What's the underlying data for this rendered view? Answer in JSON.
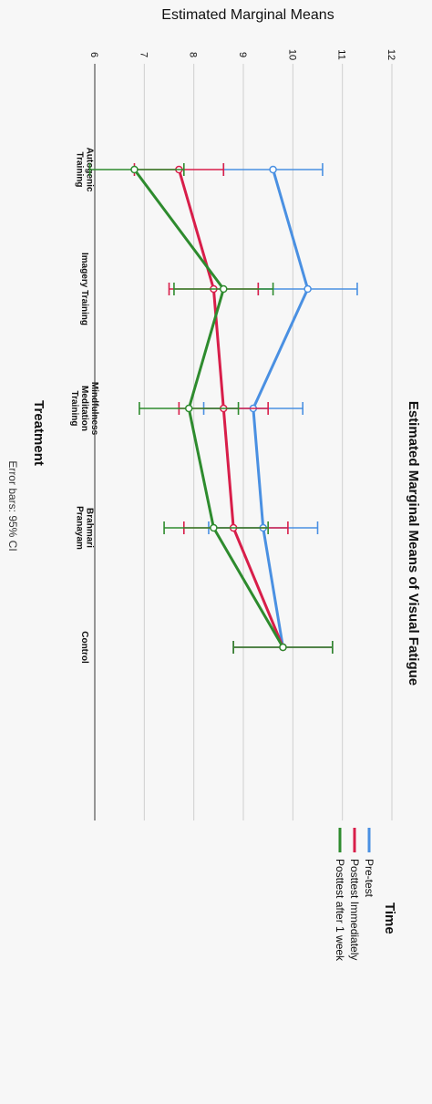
{
  "chart_data": {
    "type": "line",
    "title": "Estimated Marginal Means of Visual Fatigue",
    "ylabel": "Estimated Marginal Means",
    "xlabel": "Treatment",
    "note": "Error bars: 95% CI",
    "ylim": [
      6,
      12
    ],
    "yticks": [
      "6",
      "7",
      "8",
      "9",
      "10",
      "11",
      "12"
    ],
    "categories": [
      [
        "Autogenic",
        "Training"
      ],
      [
        "Imagery Training"
      ],
      [
        "Mindfulness",
        "Meditation",
        "Training"
      ],
      [
        "Brahmari",
        "Pranayam"
      ],
      [
        "Control"
      ]
    ],
    "legend_title": "Time",
    "legend_position": "right",
    "grid": true,
    "series": [
      {
        "name": "Pre-test",
        "color": "#4a90e2",
        "values": [
          9.6,
          10.3,
          9.2,
          9.4,
          9.8
        ],
        "lower": [
          8.6,
          9.3,
          8.2,
          8.3,
          8.8
        ],
        "upper": [
          10.6,
          11.3,
          10.2,
          10.5,
          10.8
        ]
      },
      {
        "name": "Posttest Immediately",
        "color": "#d81e4a",
        "values": [
          7.7,
          8.4,
          8.6,
          8.8,
          9.8
        ],
        "lower": [
          6.8,
          7.5,
          7.7,
          7.8,
          8.8
        ],
        "upper": [
          8.6,
          9.3,
          9.5,
          9.9,
          10.8
        ]
      },
      {
        "name": "Posttest after 1 week",
        "color": "#2e8b2e",
        "values": [
          6.8,
          8.6,
          7.9,
          8.4,
          9.8
        ],
        "lower": [
          5.9,
          7.6,
          6.9,
          7.4,
          8.8
        ],
        "upper": [
          7.8,
          9.6,
          8.9,
          9.5,
          10.8
        ]
      }
    ]
  }
}
